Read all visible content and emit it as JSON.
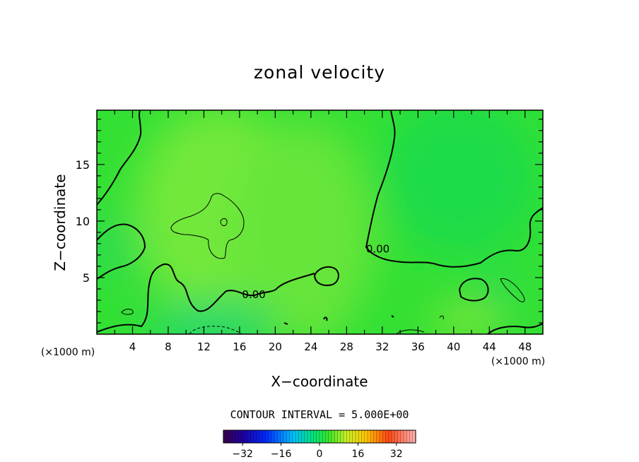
{
  "chart_data": {
    "type": "heatmap",
    "title": "zonal velocity",
    "xlabel": "X−coordinate",
    "ylabel": "Z−coordinate",
    "x_unit": "(×1000 m)",
    "y_unit": "(×1000 m)",
    "xlim": [
      0,
      50
    ],
    "ylim": [
      0,
      19.8
    ],
    "x_ticks": [
      4,
      8,
      12,
      16,
      20,
      24,
      28,
      32,
      36,
      40,
      44,
      48
    ],
    "y_ticks": [
      5,
      10,
      15
    ],
    "contour_interval_text": "CONTOUR INTERVAL = 5.000E+00",
    "contour_labels": [
      {
        "text": "0.00",
        "x": 31.5,
        "y": 7.2
      },
      {
        "text": "0.00",
        "x": 17.6,
        "y": 3.2
      }
    ],
    "colorbar": {
      "min": -40,
      "max": 40,
      "tick_values": [
        -32,
        -16,
        0,
        16,
        32
      ],
      "tick_labels": [
        "−32",
        "−16",
        "0",
        "16",
        "32"
      ]
    },
    "colors": {
      "field_base": "#33e034",
      "contour": "#000000"
    }
  }
}
